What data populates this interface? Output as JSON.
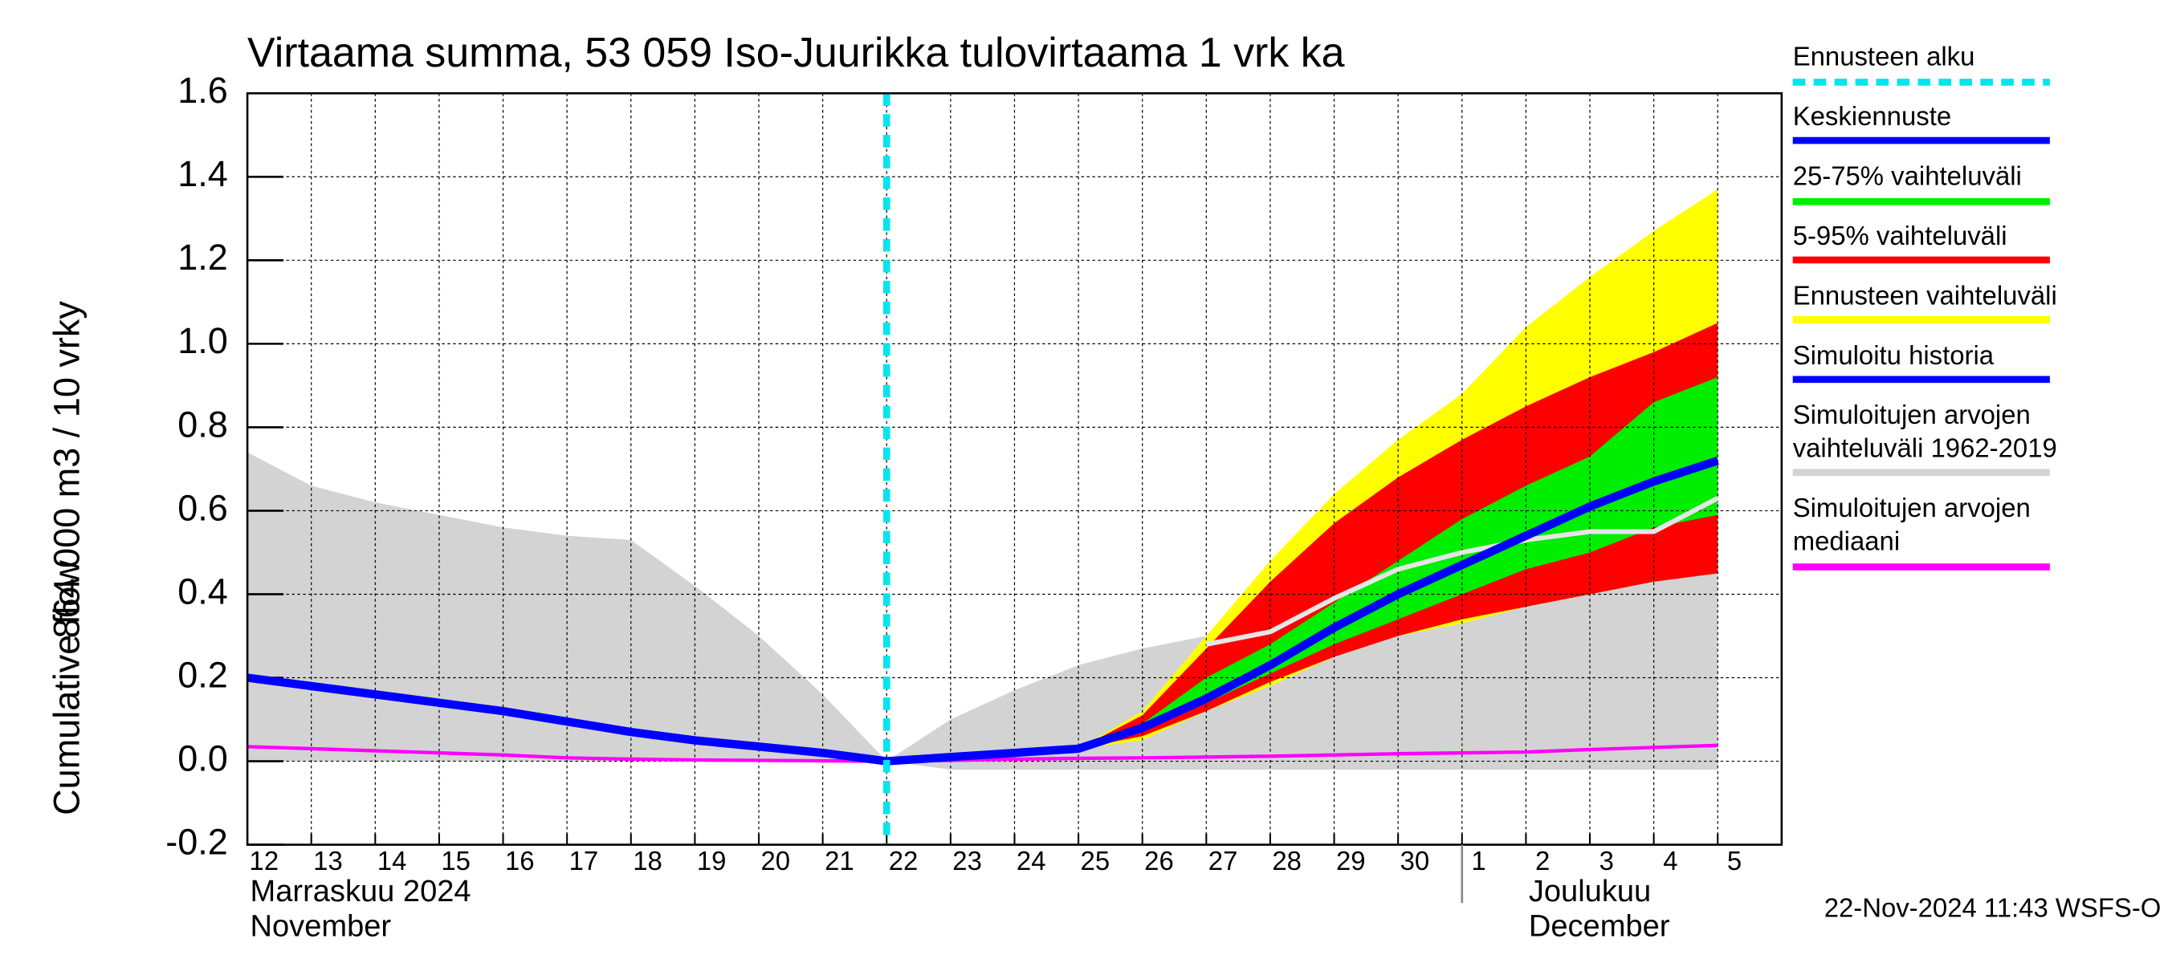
{
  "chart_data": {
    "type": "area",
    "title": "Virtaama summa, 53 059 Iso-Juurikka tulovirtaama 1 vrk ka",
    "ylabel": "864 000 m3 / 10 vrky",
    "ylabel2": "Cumulative flow",
    "categories": [
      "12",
      "13",
      "14",
      "15",
      "16",
      "17",
      "18",
      "19",
      "20",
      "21",
      "22",
      "23",
      "24",
      "25",
      "26",
      "27",
      "28",
      "29",
      "30",
      "1",
      "2",
      "3",
      "4",
      "5"
    ],
    "month_labels": [
      [
        "Marraskuu 2024",
        "November"
      ],
      [
        "Joulukuu",
        "December"
      ]
    ],
    "footer": "22-Nov-2024 11:43 WSFS-O",
    "forecast_start_label": "Ennusteen alku",
    "forecast_start_index": 10,
    "forecast_start_color": "#00e5ee",
    "ylim": [
      -0.2,
      1.6
    ],
    "yticks": [
      -0.2,
      {
        "value": 0,
        "label": "0.0"
      },
      0.2,
      0.4,
      0.6,
      0.8,
      {
        "value": 1,
        "label": "1.0"
      },
      1.2,
      1.4,
      1.6
    ],
    "grid": true,
    "legend": "right",
    "legend_order": [
      7,
      3,
      2,
      1,
      6,
      0,
      5
    ],
    "series": [
      {
        "name": "Simuloitujen arvojen\nvaihteluväli 1962-2019",
        "kind": "band",
        "color": "#d3d3d3",
        "values": [
          0.74,
          0.66,
          0.62,
          0.59,
          0.56,
          0.54,
          0.53,
          0.42,
          0.3,
          0.16,
          0.0,
          0.1,
          0.17,
          0.23,
          0.27,
          0.3,
          0.34,
          0.38,
          0.42,
          0.46,
          0.5,
          0.54,
          0.58,
          0.62
        ],
        "lower": [
          0,
          0,
          0,
          0,
          0,
          0,
          0,
          0,
          0,
          0,
          0,
          -0.02,
          -0.02,
          -0.02,
          -0.02,
          -0.02,
          -0.02,
          -0.02,
          -0.02,
          -0.02,
          -0.02,
          -0.02,
          -0.02,
          -0.02
        ]
      },
      {
        "name": "Ennusteen vaihteluväli",
        "kind": "band",
        "color": "#ffff00",
        "values": [
          null,
          null,
          null,
          null,
          null,
          null,
          null,
          null,
          null,
          null,
          null,
          null,
          null,
          0.03,
          0.12,
          0.3,
          0.48,
          0.64,
          0.77,
          0.88,
          1.04,
          1.16,
          1.27,
          1.37
        ],
        "lower": [
          null,
          null,
          null,
          null,
          null,
          null,
          null,
          null,
          null,
          null,
          null,
          null,
          null,
          0.03,
          0.05,
          0.12,
          0.18,
          0.25,
          0.3,
          0.33,
          0.37,
          0.4,
          0.43,
          0.45
        ]
      },
      {
        "name": "5-95% vaihteluväli",
        "kind": "band",
        "color": "#ff0000",
        "values": [
          null,
          null,
          null,
          null,
          null,
          null,
          null,
          null,
          null,
          null,
          null,
          null,
          null,
          0.03,
          0.11,
          0.27,
          0.43,
          0.57,
          0.68,
          0.77,
          0.85,
          0.92,
          0.98,
          1.05
        ],
        "lower": [
          null,
          null,
          null,
          null,
          null,
          null,
          null,
          null,
          null,
          null,
          null,
          null,
          null,
          0.03,
          0.06,
          0.12,
          0.19,
          0.25,
          0.3,
          0.34,
          0.37,
          0.4,
          0.43,
          0.45
        ]
      },
      {
        "name": "25-75% vaihteluväli",
        "kind": "band",
        "color": "#00ee00",
        "values": [
          null,
          null,
          null,
          null,
          null,
          null,
          null,
          null,
          null,
          null,
          null,
          null,
          null,
          0.03,
          0.09,
          0.2,
          0.28,
          0.38,
          0.48,
          0.58,
          0.66,
          0.73,
          0.86,
          0.92
        ],
        "lower": [
          null,
          null,
          null,
          null,
          null,
          null,
          null,
          null,
          null,
          null,
          null,
          null,
          null,
          0.03,
          0.07,
          0.14,
          0.21,
          0.28,
          0.34,
          0.4,
          0.46,
          0.5,
          0.56,
          0.59
        ]
      },
      {
        "kind": "line",
        "color": "#e6e6e6",
        "values": [
          null,
          null,
          null,
          null,
          null,
          null,
          null,
          null,
          null,
          null,
          null,
          null,
          null,
          null,
          null,
          0.28,
          0.31,
          0.39,
          0.46,
          0.5,
          0.53,
          0.55,
          0.55,
          0.63
        ]
      },
      {
        "name": "Simuloitujen arvojen\nmediaani",
        "kind": "line",
        "color": "#ff00ff",
        "values": [
          0.035,
          0.03,
          0.025,
          0.02,
          0.015,
          0.008,
          0.005,
          0.003,
          0.002,
          0.001,
          0.0,
          0.002,
          0.005,
          0.007,
          0.008,
          0.01,
          0.012,
          0.015,
          0.018,
          0.02,
          0.022,
          0.028,
          0.033,
          0.038
        ]
      },
      {
        "name": "Simuloitu historia",
        "kind": "line",
        "color": "#0000ff",
        "values": [
          0.2,
          0.18,
          0.16,
          0.14,
          0.12,
          0.095,
          0.07,
          0.05,
          0.035,
          0.02,
          0.0,
          null,
          null,
          null,
          null,
          null,
          null,
          null,
          null,
          null,
          null,
          null,
          null,
          null
        ]
      },
      {
        "name": "Keskiennuste",
        "kind": "line",
        "color": "#0000ff",
        "values": [
          null,
          null,
          null,
          null,
          null,
          null,
          null,
          null,
          null,
          null,
          0.0,
          0.01,
          0.02,
          0.03,
          0.08,
          0.15,
          0.23,
          0.32,
          0.4,
          0.47,
          0.54,
          0.61,
          0.67,
          0.72
        ]
      }
    ]
  }
}
